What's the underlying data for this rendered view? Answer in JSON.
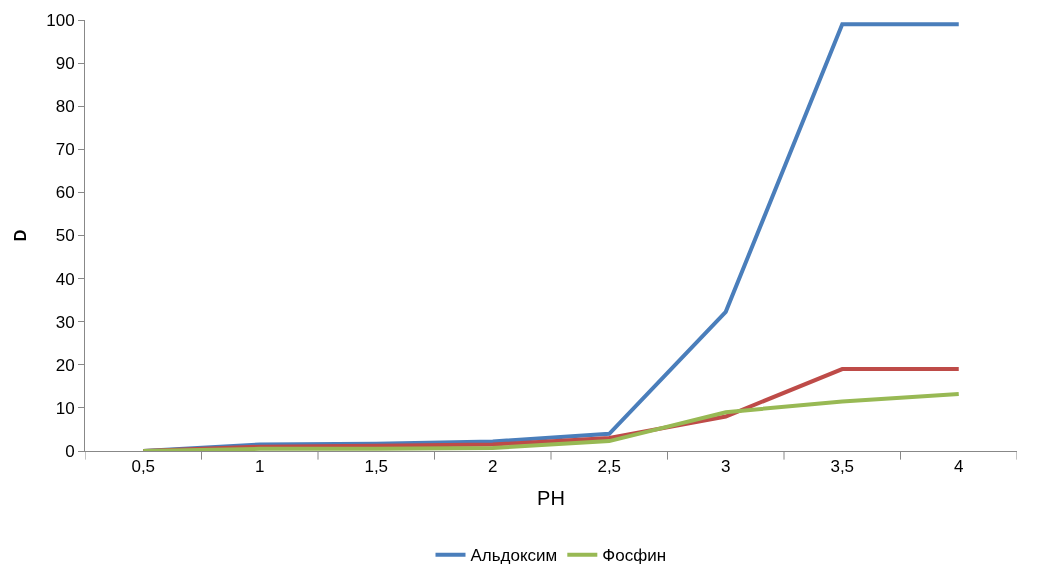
{
  "chart_data": {
    "type": "line",
    "xlabel": "PH",
    "ylabel": "D",
    "categories": [
      "0,5",
      "1",
      "1,5",
      "2",
      "2,5",
      "3",
      "3,5",
      "4"
    ],
    "series": [
      {
        "name": "Альдоксим",
        "color": "#4a7ebb",
        "values": [
          0,
          1.5,
          1.7,
          2.2,
          4,
          32.3,
          99,
          99
        ]
      },
      {
        "color": "#be4b48",
        "values": [
          0,
          1,
          1.2,
          1.5,
          3,
          8,
          19,
          19
        ]
      },
      {
        "name": "Фосфин",
        "color": "#98b954",
        "values": [
          0,
          0.5,
          0.5,
          0.7,
          2.3,
          9,
          11.5,
          13.2
        ]
      }
    ],
    "ylim": [
      0,
      100
    ],
    "yticks": [
      0,
      10,
      20,
      30,
      40,
      50,
      60,
      70,
      80,
      90,
      100
    ],
    "grid": false,
    "legend": "bottom",
    "marker": "none",
    "line_style": "solid"
  }
}
